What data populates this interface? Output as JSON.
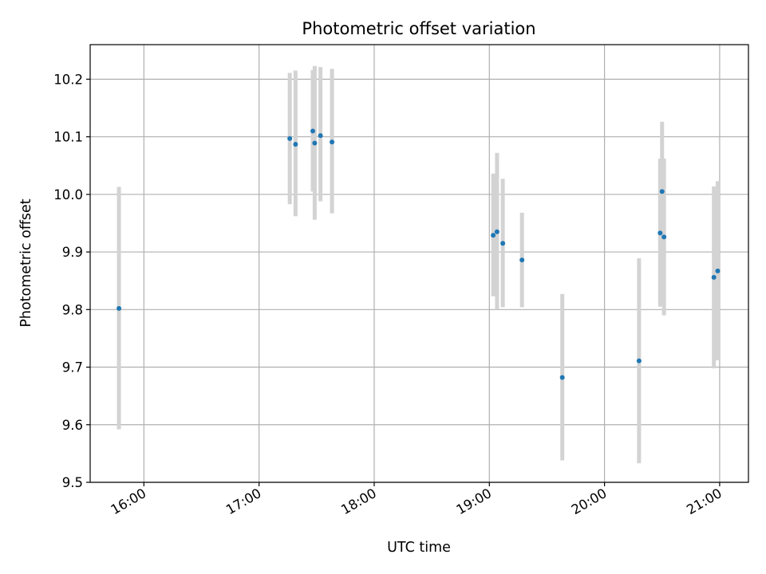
{
  "chart_data": {
    "type": "scatter",
    "title": "Photometric offset variation",
    "xlabel": "UTC time",
    "ylabel": "Photometric offset",
    "xlim": [
      "15:32",
      "21:15"
    ],
    "ylim": [
      9.5,
      10.26
    ],
    "grid": true,
    "x_ticks": [
      "16:00",
      "17:00",
      "18:00",
      "19:00",
      "20:00",
      "21:00"
    ],
    "y_ticks": [
      "9.5",
      "9.6",
      "9.7",
      "9.8",
      "9.9",
      "10.0",
      "10.1",
      "10.2"
    ],
    "marker_color": "#1f77b4",
    "errorbar_color": "#d3d3d3",
    "points": [
      {
        "x": "15:47",
        "y": 9.802,
        "err_low": 9.592,
        "err_high": 10.013
      },
      {
        "x": "17:16",
        "y": 10.097,
        "err_low": 9.983,
        "err_high": 10.211
      },
      {
        "x": "17:19",
        "y": 10.087,
        "err_low": 9.962,
        "err_high": 10.215
      },
      {
        "x": "17:28",
        "y": 10.11,
        "err_low": 10.005,
        "err_high": 10.216
      },
      {
        "x": "17:29",
        "y": 10.089,
        "err_low": 9.956,
        "err_high": 10.223
      },
      {
        "x": "17:32",
        "y": 10.102,
        "err_low": 9.988,
        "err_high": 10.221
      },
      {
        "x": "17:38",
        "y": 10.091,
        "err_low": 9.967,
        "err_high": 10.218
      },
      {
        "x": "19:02",
        "y": 9.929,
        "err_low": 9.823,
        "err_high": 10.036
      },
      {
        "x": "19:04",
        "y": 9.935,
        "err_low": 9.8,
        "err_high": 10.072
      },
      {
        "x": "19:07",
        "y": 9.915,
        "err_low": 9.804,
        "err_high": 10.027
      },
      {
        "x": "19:17",
        "y": 9.886,
        "err_low": 9.804,
        "err_high": 9.968
      },
      {
        "x": "19:38",
        "y": 9.682,
        "err_low": 9.538,
        "err_high": 9.827
      },
      {
        "x": "20:18",
        "y": 9.711,
        "err_low": 9.533,
        "err_high": 9.889
      },
      {
        "x": "20:29",
        "y": 9.933,
        "err_low": 9.805,
        "err_high": 10.062
      },
      {
        "x": "20:30",
        "y": 10.005,
        "err_low": 9.886,
        "err_high": 10.126
      },
      {
        "x": "20:31",
        "y": 9.926,
        "err_low": 9.79,
        "err_high": 10.062
      },
      {
        "x": "20:57",
        "y": 9.856,
        "err_low": 9.698,
        "err_high": 10.014
      },
      {
        "x": "20:59",
        "y": 9.867,
        "err_low": 9.712,
        "err_high": 10.023
      }
    ]
  }
}
